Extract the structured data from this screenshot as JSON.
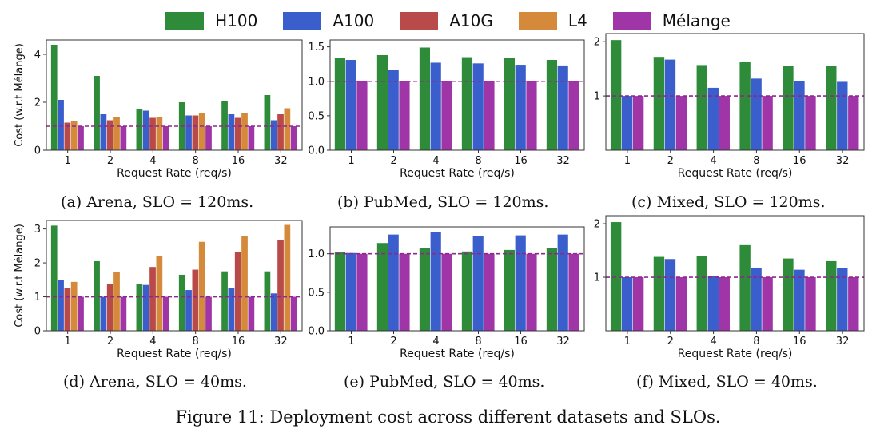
{
  "legend": [
    {
      "name": "H100",
      "color": "#2e8b3a"
    },
    {
      "name": "A100",
      "color": "#3a5fcd"
    },
    {
      "name": "A10G",
      "color": "#b84a4a"
    },
    {
      "name": "L4",
      "color": "#d48a3a"
    },
    {
      "name": "Mélange",
      "color": "#a035a8"
    }
  ],
  "figure_caption": "Figure 11: Deployment cost across different datasets and SLOs.",
  "reference_line": {
    "y": 1.0,
    "color": "#8b2a8b",
    "style": "dashed"
  },
  "chart_data": [
    {
      "id": "a",
      "type": "bar",
      "caption": "(a) Arena, SLO = 120ms.",
      "xlabel": "Request Rate (req/s)",
      "ylabel": "Cost (w.r.t Mélange)",
      "categories": [
        "1",
        "2",
        "4",
        "8",
        "16",
        "32"
      ],
      "ylim": [
        0,
        4.6
      ],
      "yticks": [
        0,
        2,
        4
      ],
      "ytick_labels": [
        "0",
        "2",
        "4"
      ],
      "series": [
        {
          "name": "H100",
          "values": [
            4.4,
            3.1,
            1.7,
            2.0,
            2.05,
            2.3
          ]
        },
        {
          "name": "A100",
          "values": [
            2.1,
            1.5,
            1.65,
            1.45,
            1.5,
            1.25
          ]
        },
        {
          "name": "A10G",
          "values": [
            1.15,
            1.25,
            1.35,
            1.45,
            1.35,
            1.5
          ]
        },
        {
          "name": "L4",
          "values": [
            1.2,
            1.4,
            1.4,
            1.55,
            1.55,
            1.75
          ]
        },
        {
          "name": "Mélange",
          "values": [
            1.0,
            1.0,
            1.0,
            1.0,
            1.0,
            1.0
          ]
        }
      ]
    },
    {
      "id": "b",
      "type": "bar",
      "caption": "(b) PubMed, SLO = 120ms.",
      "xlabel": "Request Rate (req/s)",
      "ylabel": "",
      "categories": [
        "1",
        "2",
        "4",
        "8",
        "16",
        "32"
      ],
      "ylim": [
        0,
        1.6
      ],
      "yticks": [
        0,
        0.5,
        1.0,
        1.5
      ],
      "ytick_labels": [
        "0.0",
        "0.5",
        "1.0",
        "1.5"
      ],
      "series": [
        {
          "name": "H100",
          "values": [
            1.34,
            1.38,
            1.49,
            1.35,
            1.34,
            1.31
          ]
        },
        {
          "name": "A100",
          "values": [
            1.31,
            1.17,
            1.27,
            1.26,
            1.24,
            1.23
          ]
        },
        {
          "name": "Mélange",
          "values": [
            1.0,
            1.0,
            1.0,
            1.0,
            1.0,
            1.0
          ]
        }
      ]
    },
    {
      "id": "c",
      "type": "bar",
      "caption": "(c) Mixed, SLO = 120ms.",
      "xlabel": "Request Rate (req/s)",
      "ylabel": "",
      "categories": [
        "1",
        "2",
        "4",
        "8",
        "16",
        "32"
      ],
      "ylim": [
        0,
        2.15
      ],
      "yticks": [
        1,
        2
      ],
      "ytick_labels": [
        "1",
        "2"
      ],
      "series": [
        {
          "name": "H100",
          "values": [
            2.03,
            1.72,
            1.57,
            1.62,
            1.56,
            1.55
          ]
        },
        {
          "name": "A100",
          "values": [
            1.0,
            1.67,
            1.15,
            1.32,
            1.27,
            1.26
          ]
        },
        {
          "name": "Mélange",
          "values": [
            1.0,
            1.0,
            1.0,
            1.0,
            1.0,
            1.0
          ]
        }
      ]
    },
    {
      "id": "d",
      "type": "bar",
      "caption": "(d) Arena, SLO = 40ms.",
      "xlabel": "Request Rate (req/s)",
      "ylabel": "Cost (w.r.t Mélange)",
      "categories": [
        "1",
        "2",
        "4",
        "8",
        "16",
        "32"
      ],
      "ylim": [
        0,
        3.25
      ],
      "yticks": [
        0,
        1,
        2,
        3
      ],
      "ytick_labels": [
        "0",
        "1",
        "2",
        "3"
      ],
      "series": [
        {
          "name": "H100",
          "values": [
            3.1,
            2.05,
            1.38,
            1.65,
            1.75,
            1.75
          ]
        },
        {
          "name": "A100",
          "values": [
            1.5,
            1.0,
            1.35,
            1.2,
            1.27,
            1.1
          ]
        },
        {
          "name": "A10G",
          "values": [
            1.25,
            1.37,
            1.88,
            1.8,
            2.33,
            2.67
          ]
        },
        {
          "name": "L4",
          "values": [
            1.44,
            1.72,
            2.2,
            2.62,
            2.8,
            3.12
          ]
        },
        {
          "name": "Mélange",
          "values": [
            1.0,
            1.0,
            1.0,
            1.0,
            1.0,
            1.0
          ]
        }
      ]
    },
    {
      "id": "e",
      "type": "bar",
      "caption": "(e) PubMed, SLO = 40ms.",
      "xlabel": "Request Rate (req/s)",
      "ylabel": "",
      "categories": [
        "1",
        "2",
        "4",
        "8",
        "16",
        "32"
      ],
      "ylim": [
        0,
        1.35
      ],
      "yticks": [
        0,
        0.5,
        1.0
      ],
      "ytick_labels": [
        "0.0",
        "0.5",
        "1.0"
      ],
      "series": [
        {
          "name": "H100",
          "values": [
            1.02,
            1.14,
            1.07,
            1.03,
            1.05,
            1.07
          ]
        },
        {
          "name": "A100",
          "values": [
            1.01,
            1.25,
            1.28,
            1.23,
            1.24,
            1.25
          ]
        },
        {
          "name": "Mélange",
          "values": [
            1.0,
            1.0,
            1.0,
            1.0,
            1.0,
            1.0
          ]
        }
      ]
    },
    {
      "id": "f",
      "type": "bar",
      "caption": "(f) Mixed, SLO = 40ms.",
      "xlabel": "Request Rate (req/s)",
      "ylabel": "",
      "categories": [
        "1",
        "2",
        "4",
        "8",
        "16",
        "32"
      ],
      "ylim": [
        0,
        2.15
      ],
      "yticks": [
        1,
        2
      ],
      "ytick_labels": [
        "1",
        "2"
      ],
      "series": [
        {
          "name": "H100",
          "values": [
            2.03,
            1.38,
            1.4,
            1.6,
            1.35,
            1.3
          ]
        },
        {
          "name": "A100",
          "values": [
            1.0,
            1.34,
            1.03,
            1.18,
            1.14,
            1.17
          ]
        },
        {
          "name": "Mélange",
          "values": [
            1.0,
            1.0,
            1.0,
            1.0,
            1.0,
            1.0
          ]
        }
      ]
    }
  ]
}
